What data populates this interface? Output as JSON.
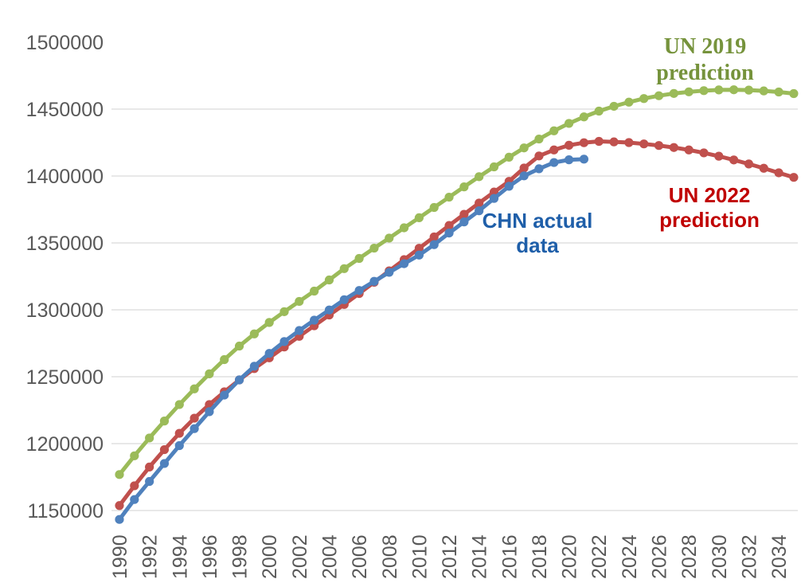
{
  "chart_data": {
    "type": "line",
    "title": "",
    "xlabel": "",
    "ylabel": "",
    "x": [
      1990,
      1991,
      1992,
      1993,
      1994,
      1995,
      1996,
      1997,
      1998,
      1999,
      2000,
      2001,
      2002,
      2003,
      2004,
      2005,
      2006,
      2007,
      2008,
      2009,
      2010,
      2011,
      2012,
      2013,
      2014,
      2015,
      2016,
      2017,
      2018,
      2019,
      2020,
      2021,
      2022,
      2023,
      2024,
      2025,
      2026,
      2027,
      2028,
      2029,
      2030,
      2031,
      2032,
      2033,
      2034,
      2035
    ],
    "x_tick_labels": [
      "1990",
      "1992",
      "1994",
      "1996",
      "1998",
      "2000",
      "2002",
      "2004",
      "2006",
      "2008",
      "2010",
      "2012",
      "2014",
      "2016",
      "2018",
      "2020",
      "2022",
      "2024",
      "2026",
      "2028",
      "2030",
      "2032",
      "2034"
    ],
    "y_tick_labels": [
      "1150000",
      "1200000",
      "1250000",
      "1300000",
      "1350000",
      "1400000",
      "1450000",
      "1500000"
    ],
    "ylim": [
      1150000,
      1500000
    ],
    "y_gridline_max": 1450000,
    "grid": "horizontal",
    "legend_position": "none",
    "axis_label_color": "#595959",
    "gridline_color": "#D9D9D9",
    "series": [
      {
        "name": "UN 2019 prediction",
        "slug": "un-2019-prediction",
        "color": "#9BBB59",
        "values": [
          1176884,
          1190900,
          1204200,
          1216900,
          1229200,
          1240921,
          1252150,
          1262800,
          1272900,
          1282000,
          1290551,
          1298600,
          1306300,
          1314000,
          1322300,
          1330776,
          1338400,
          1346100,
          1353600,
          1361300,
          1368811,
          1376500,
          1384200,
          1391900,
          1399500,
          1406848,
          1414050,
          1421000,
          1427650,
          1433784,
          1439324,
          1444200,
          1448500,
          1452100,
          1455200,
          1457900,
          1460000,
          1461700,
          1462900,
          1463800,
          1464340,
          1464450,
          1464200,
          1463600,
          1462800,
          1461600
        ]
      },
      {
        "name": "UN 2022 prediction",
        "slug": "un-2022-prediction",
        "color": "#C0504D",
        "values": [
          1153704,
          1168500,
          1182500,
          1195500,
          1207700,
          1219000,
          1229200,
          1238700,
          1247600,
          1256100,
          1264099,
          1272200,
          1280200,
          1288100,
          1296100,
          1304000,
          1312200,
          1320600,
          1329100,
          1337500,
          1346000,
          1354500,
          1363000,
          1371400,
          1379800,
          1388000,
          1396000,
          1406000,
          1415000,
          1419500,
          1423000,
          1424900,
          1425887,
          1425500,
          1425000,
          1424000,
          1422800,
          1421300,
          1419500,
          1417300,
          1414800,
          1412000,
          1409000,
          1405800,
          1402400,
          1399000
        ]
      },
      {
        "name": "CHN actual data",
        "slug": "chn-actual-data",
        "color": "#4F81BD",
        "values": [
          1143330,
          1158230,
          1171710,
          1185170,
          1198500,
          1211210,
          1223890,
          1236260,
          1247610,
          1257860,
          1267430,
          1276270,
          1284530,
          1292270,
          1299880,
          1307560,
          1314480,
          1321290,
          1328020,
          1334500,
          1340910,
          1348730,
          1357380,
          1365690,
          1374040,
          1383260,
          1392320,
          1400110,
          1405410,
          1410080,
          1412120,
          1412600,
          null,
          null,
          null,
          null,
          null,
          null,
          null,
          null,
          null,
          null,
          null,
          null,
          null,
          null
        ]
      }
    ],
    "annotations": [
      {
        "lines": [
          "UN 2019",
          "prediction"
        ],
        "color": "#76933C",
        "series": "un-2019-prediction"
      },
      {
        "lines": [
          "UN 2022",
          "prediction"
        ],
        "color": "#C00000",
        "series": "un-2022-prediction"
      },
      {
        "lines": [
          "CHN actual",
          "data"
        ],
        "color": "#1F5FA9",
        "series": "chn-actual-data"
      }
    ]
  }
}
